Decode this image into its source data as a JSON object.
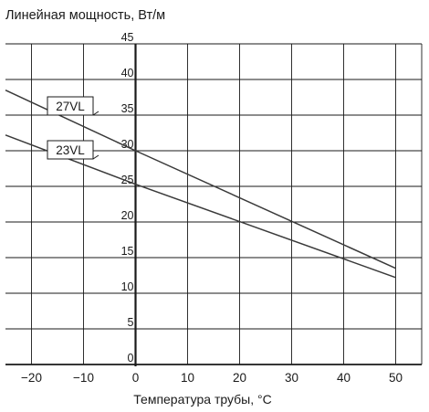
{
  "chart_data": {
    "type": "line",
    "title": "",
    "ylabel": "Линейная мощность, Вт/м",
    "xlabel": "Температура трубы, °C",
    "xlim": [
      -25,
      55
    ],
    "ylim": [
      0,
      45
    ],
    "x_ticks": [
      -20,
      -10,
      0,
      10,
      20,
      30,
      40,
      50
    ],
    "y_ticks": [
      0,
      5,
      10,
      15,
      20,
      25,
      30,
      35,
      40,
      45
    ],
    "grid": true,
    "series": [
      {
        "name": "27VL",
        "x": [
          -25,
          0,
          50
        ],
        "values": [
          38.5,
          30,
          13.5
        ]
      },
      {
        "name": "23VL",
        "x": [
          -25,
          0,
          50
        ],
        "values": [
          32.2,
          25.3,
          12.2
        ]
      }
    ]
  }
}
